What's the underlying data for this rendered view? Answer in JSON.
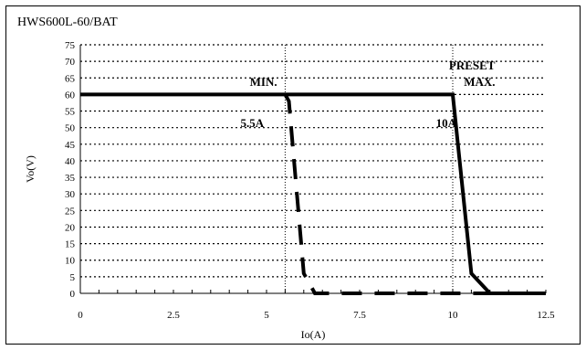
{
  "chart_data": {
    "type": "line",
    "title": "HWS600L-60/BAT",
    "xlabel": "Io(A)",
    "ylabel": "Vo(V)",
    "xlim": [
      0,
      12.5
    ],
    "ylim": [
      0,
      75
    ],
    "x_ticks": [
      "0",
      "2.5",
      "5",
      "7.5",
      "10",
      "12.5"
    ],
    "y_ticks": [
      "0",
      "5",
      "10",
      "15",
      "20",
      "25",
      "30",
      "35",
      "40",
      "45",
      "50",
      "55",
      "60",
      "65",
      "70",
      "75"
    ],
    "grid": true,
    "series": [
      {
        "style": "solid",
        "points": [
          [
            0,
            60
          ],
          [
            10,
            60
          ],
          [
            10.5,
            6
          ],
          [
            11,
            0
          ],
          [
            12.5,
            0
          ]
        ]
      },
      {
        "style": "dashed",
        "points": [
          [
            5.5,
            60
          ],
          [
            5.6,
            58
          ],
          [
            6,
            6
          ],
          [
            6.3,
            0
          ],
          [
            12.5,
            0
          ]
        ]
      }
    ],
    "reference_lines": [
      {
        "x": 5.5,
        "style": "dotted"
      },
      {
        "x": 10,
        "style": "dotted"
      }
    ],
    "annotations": [
      {
        "text": "MIN.",
        "x": 4.55,
        "y": 64
      },
      {
        "text": "5.5A",
        "x": 4.3,
        "y": 51.5
      },
      {
        "text": "PRESET",
        "x": 9.9,
        "y": 69
      },
      {
        "text": "MAX.",
        "x": 10.3,
        "y": 64
      },
      {
        "text": "10A",
        "x": 9.55,
        "y": 51.5
      }
    ]
  }
}
